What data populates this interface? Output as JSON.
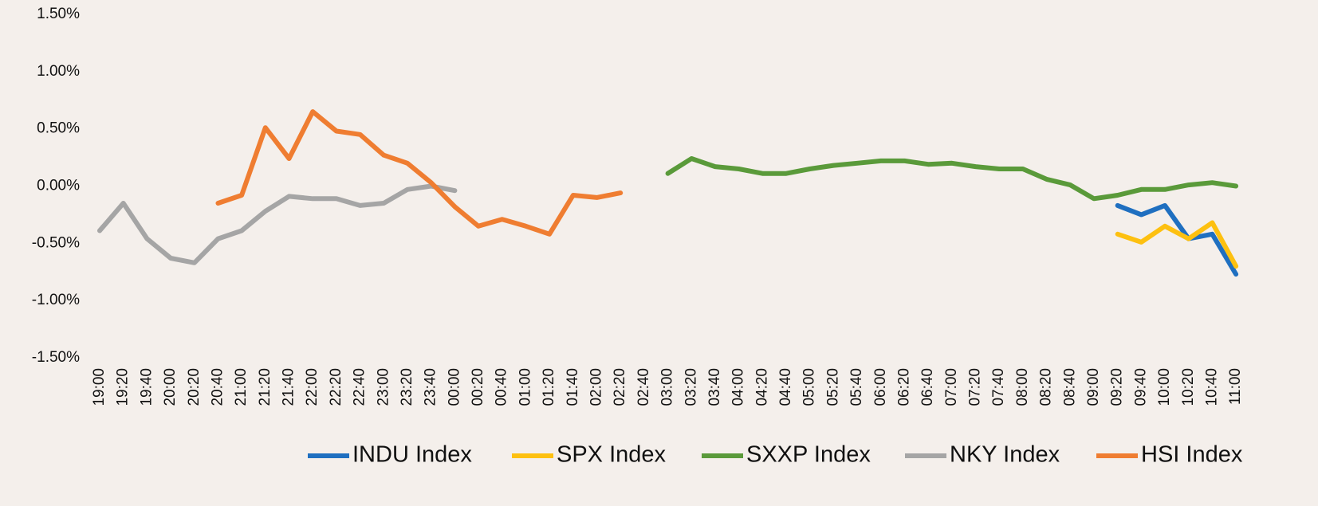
{
  "chart_data": {
    "type": "line",
    "categories": [
      "19:00",
      "19:20",
      "19:40",
      "20:00",
      "20:20",
      "20:40",
      "21:00",
      "21:20",
      "21:40",
      "22:00",
      "22:20",
      "22:40",
      "23:00",
      "23:20",
      "23:40",
      "00:00",
      "00:20",
      "00:40",
      "01:00",
      "01:20",
      "01:40",
      "02:00",
      "02:20",
      "02:40",
      "03:00",
      "03:20",
      "03:40",
      "04:00",
      "04:20",
      "04:40",
      "05:00",
      "05:20",
      "05:40",
      "06:00",
      "06:20",
      "06:40",
      "07:00",
      "07:20",
      "07:40",
      "08:00",
      "08:20",
      "08:40",
      "09:00",
      "09:20",
      "09:40",
      "10:00",
      "10:20",
      "10:40",
      "11:00"
    ],
    "series": [
      {
        "name": "INDU Index",
        "color": "#1f6fc0",
        "values": [
          null,
          null,
          null,
          null,
          null,
          null,
          null,
          null,
          null,
          null,
          null,
          null,
          null,
          null,
          null,
          null,
          null,
          null,
          null,
          null,
          null,
          null,
          null,
          null,
          null,
          null,
          null,
          null,
          null,
          null,
          null,
          null,
          null,
          null,
          null,
          null,
          null,
          null,
          null,
          null,
          null,
          null,
          null,
          -0.17,
          -0.25,
          -0.17,
          -0.46,
          -0.42,
          -0.77
        ]
      },
      {
        "name": "SPX Index",
        "color": "#fdc010",
        "values": [
          null,
          null,
          null,
          null,
          null,
          null,
          null,
          null,
          null,
          null,
          null,
          null,
          null,
          null,
          null,
          null,
          null,
          null,
          null,
          null,
          null,
          null,
          null,
          null,
          null,
          null,
          null,
          null,
          null,
          null,
          null,
          null,
          null,
          null,
          null,
          null,
          null,
          null,
          null,
          null,
          null,
          null,
          null,
          -0.42,
          -0.49,
          -0.35,
          -0.46,
          -0.32,
          -0.7
        ]
      },
      {
        "name": "SXXP Index",
        "color": "#5a9a3a",
        "values": [
          null,
          null,
          null,
          null,
          null,
          null,
          null,
          null,
          null,
          null,
          null,
          null,
          null,
          null,
          null,
          null,
          null,
          null,
          null,
          null,
          null,
          null,
          null,
          null,
          0.11,
          0.24,
          0.17,
          0.15,
          0.11,
          0.11,
          0.15,
          0.18,
          0.2,
          0.22,
          0.22,
          0.19,
          0.2,
          0.17,
          0.15,
          0.15,
          0.06,
          0.01,
          -0.11,
          -0.08,
          -0.03,
          -0.03,
          0.01,
          0.03,
          0
        ]
      },
      {
        "name": "NKY Index",
        "color": "#a5a5a5",
        "values": [
          -0.39,
          -0.15,
          -0.46,
          -0.63,
          -0.67,
          -0.46,
          -0.39,
          -0.22,
          -0.09,
          -0.11,
          -0.11,
          -0.17,
          -0.15,
          -0.03,
          0,
          -0.04,
          null,
          null,
          null,
          null,
          null,
          null,
          null,
          null,
          null,
          null,
          null,
          null,
          null,
          null,
          null,
          null,
          null,
          null,
          null,
          null,
          null,
          null,
          null,
          null,
          null,
          null,
          null,
          null,
          null,
          null,
          null,
          null,
          null
        ]
      },
      {
        "name": "HSI Index",
        "color": "#ef7d31",
        "values": [
          null,
          null,
          null,
          null,
          null,
          -0.15,
          -0.08,
          0.51,
          0.24,
          0.65,
          0.48,
          0.45,
          0.27,
          0.2,
          0.03,
          -0.18,
          -0.35,
          -0.29,
          -0.35,
          -0.42,
          -0.08,
          -0.1,
          -0.06,
          null,
          null,
          null,
          null,
          null,
          null,
          null,
          null,
          null,
          null,
          null,
          null,
          null,
          null,
          null,
          null,
          null,
          null,
          null,
          null,
          null,
          null,
          null,
          null,
          null,
          null
        ]
      }
    ],
    "ylim": [
      -1.5,
      1.5
    ],
    "yticks": [
      {
        "value": -1.5,
        "label": "-1.50%"
      },
      {
        "value": -1,
        "label": "-1.00%"
      },
      {
        "value": -0.5,
        "label": "-0.50%"
      },
      {
        "value": 0,
        "label": "0.00%"
      },
      {
        "value": 0.5,
        "label": "0.50%"
      },
      {
        "value": 1,
        "label": "1.00%"
      },
      {
        "value": 1.5,
        "label": "1.50%"
      }
    ],
    "grid": false,
    "legend": "bottom"
  }
}
